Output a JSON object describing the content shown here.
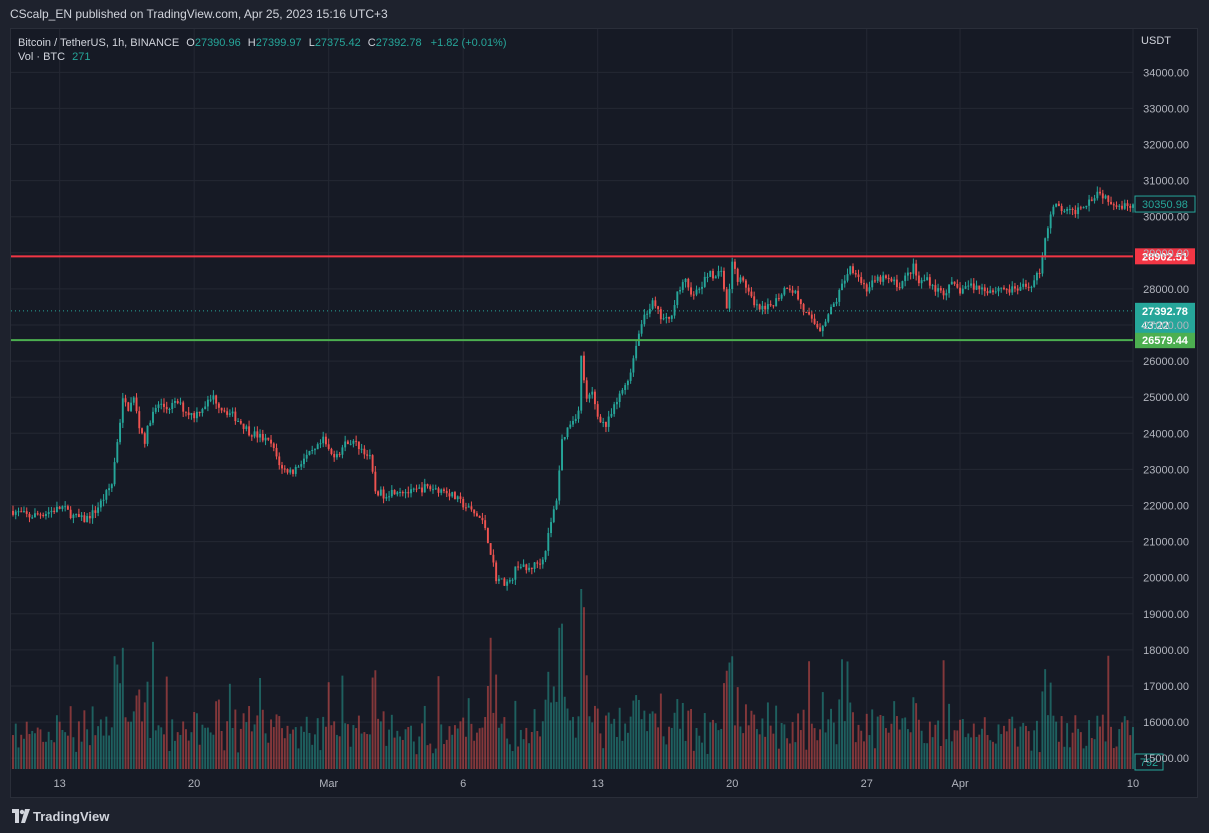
{
  "header": {
    "published_line": "CScalp_EN published on TradingView.com, Apr 25, 2023 15:16 UTC+3"
  },
  "legend": {
    "symbol_line": "Bitcoin / TetherUS, 1h, BINANCE",
    "o_label": "O",
    "o_value": "27390.96",
    "h_label": "H",
    "h_value": "27399.97",
    "l_label": "L",
    "l_value": "27375.42",
    "c_label": "C",
    "c_value": "27392.78",
    "change": "+1.82 (+0.01%)",
    "vol_label": "Vol · BTC",
    "vol_value": "271"
  },
  "footer": {
    "brand": "TradingView"
  },
  "chart_data": {
    "type": "candlestick",
    "currency": "USDT",
    "ylim": [
      14700,
      35200
    ],
    "y_ticks": [
      "15000.00",
      "16000.00",
      "17000.00",
      "18000.00",
      "19000.00",
      "20000.00",
      "21000.00",
      "22000.00",
      "23000.00",
      "24000.00",
      "25000.00",
      "26000.00",
      "27000.00",
      "28000.00",
      "29000.00",
      "30000.00",
      "31000.00",
      "32000.00",
      "33000.00",
      "34000.00"
    ],
    "x_ticks": [
      {
        "label": "13",
        "index": 17
      },
      {
        "label": "20",
        "index": 66
      },
      {
        "label": "Mar",
        "index": 115
      },
      {
        "label": "6",
        "index": 164
      },
      {
        "label": "13",
        "index": 213
      },
      {
        "label": "20",
        "index": 262
      },
      {
        "label": "27",
        "index": 311
      },
      {
        "label": "Apr",
        "index": 345
      },
      {
        "label": "10",
        "index": 408
      }
    ],
    "horizontal_levels": [
      {
        "value": 28902.51,
        "label": "28902.51",
        "color": "#f23645"
      },
      {
        "value": 26579.44,
        "label": "26579.44",
        "color": "#4caf50"
      }
    ],
    "last_price": {
      "value": 27392.78,
      "label": "27392.78",
      "countdown": "43:22",
      "color": "#26a69a"
    },
    "current_marker": {
      "value": 30350.98,
      "label": "30350.98"
    },
    "volume_label": "792",
    "colors": {
      "up": "#26a69a",
      "down": "#ef5350",
      "grid": "#242833"
    },
    "price_path": [
      [
        0,
        21850
      ],
      [
        6,
        21700
      ],
      [
        12,
        21800
      ],
      [
        18,
        21950
      ],
      [
        22,
        21700
      ],
      [
        26,
        21600
      ],
      [
        30,
        21850
      ],
      [
        33,
        22200
      ],
      [
        36,
        22600
      ],
      [
        38,
        23800
      ],
      [
        40,
        24900
      ],
      [
        42,
        24700
      ],
      [
        44,
        24950
      ],
      [
        46,
        24200
      ],
      [
        48,
        23800
      ],
      [
        50,
        24400
      ],
      [
        53,
        24800
      ],
      [
        56,
        24700
      ],
      [
        60,
        24850
      ],
      [
        63,
        24600
      ],
      [
        66,
        24500
      ],
      [
        70,
        24800
      ],
      [
        73,
        25000
      ],
      [
        76,
        24700
      ],
      [
        80,
        24500
      ],
      [
        83,
        24300
      ],
      [
        86,
        24050
      ],
      [
        90,
        23900
      ],
      [
        94,
        23700
      ],
      [
        98,
        23000
      ],
      [
        102,
        22950
      ],
      [
        106,
        23300
      ],
      [
        110,
        23500
      ],
      [
        113,
        23800
      ],
      [
        116,
        23400
      ],
      [
        119,
        23500
      ],
      [
        122,
        23800
      ],
      [
        125,
        23700
      ],
      [
        128,
        23500
      ],
      [
        130,
        23300
      ],
      [
        132,
        22400
      ],
      [
        135,
        22300
      ],
      [
        140,
        22450
      ],
      [
        145,
        22350
      ],
      [
        150,
        22500
      ],
      [
        155,
        22450
      ],
      [
        158,
        22400
      ],
      [
        162,
        22150
      ],
      [
        166,
        21900
      ],
      [
        170,
        21650
      ],
      [
        172,
        21400
      ],
      [
        174,
        20700
      ],
      [
        176,
        20000
      ],
      [
        178,
        19900
      ],
      [
        181,
        19850
      ],
      [
        184,
        20400
      ],
      [
        187,
        20200
      ],
      [
        190,
        20350
      ],
      [
        193,
        20500
      ],
      [
        196,
        21500
      ],
      [
        198,
        22200
      ],
      [
        200,
        23800
      ],
      [
        203,
        24300
      ],
      [
        206,
        24600
      ],
      [
        207,
        26100
      ],
      [
        209,
        24900
      ],
      [
        211,
        25100
      ],
      [
        213,
        24500
      ],
      [
        216,
        24200
      ],
      [
        219,
        24700
      ],
      [
        222,
        25200
      ],
      [
        225,
        25700
      ],
      [
        227,
        26500
      ],
      [
        230,
        27300
      ],
      [
        233,
        27600
      ],
      [
        236,
        27200
      ],
      [
        239,
        27100
      ],
      [
        242,
        27900
      ],
      [
        245,
        28200
      ],
      [
        248,
        27800
      ],
      [
        251,
        28100
      ],
      [
        254,
        28500
      ],
      [
        256,
        28300
      ],
      [
        258,
        28600
      ],
      [
        260,
        27400
      ],
      [
        262,
        28700
      ],
      [
        264,
        28300
      ],
      [
        267,
        28100
      ],
      [
        270,
        27500
      ],
      [
        274,
        27400
      ],
      [
        278,
        27700
      ],
      [
        282,
        28100
      ],
      [
        285,
        27900
      ],
      [
        288,
        27400
      ],
      [
        291,
        27100
      ],
      [
        294,
        26900
      ],
      [
        297,
        27300
      ],
      [
        300,
        27700
      ],
      [
        303,
        28300
      ],
      [
        305,
        28600
      ],
      [
        307,
        28500
      ],
      [
        309,
        28200
      ],
      [
        311,
        28000
      ],
      [
        314,
        28200
      ],
      [
        317,
        28300
      ],
      [
        320,
        28200
      ],
      [
        323,
        28100
      ],
      [
        326,
        28400
      ],
      [
        328,
        28600
      ],
      [
        330,
        28150
      ],
      [
        333,
        28300
      ],
      [
        336,
        28000
      ],
      [
        339,
        27900
      ],
      [
        342,
        28100
      ],
      [
        345,
        27950
      ],
      [
        348,
        28100
      ],
      [
        351,
        28050
      ],
      [
        354,
        28000
      ],
      [
        357,
        27950
      ],
      [
        360,
        28050
      ],
      [
        363,
        27950
      ],
      [
        366,
        28000
      ],
      [
        369,
        28050
      ],
      [
        372,
        28200
      ],
      [
        374,
        28500
      ],
      [
        376,
        29400
      ],
      [
        378,
        30100
      ],
      [
        380,
        30300
      ],
      [
        383,
        30150
      ],
      [
        386,
        30100
      ],
      [
        389,
        30300
      ],
      [
        392,
        30450
      ],
      [
        395,
        30700
      ],
      [
        398,
        30550
      ],
      [
        401,
        30400
      ],
      [
        404,
        30300
      ],
      [
        407,
        30350
      ]
    ],
    "volume_scale_btc": [
      0,
      25000
    ]
  }
}
